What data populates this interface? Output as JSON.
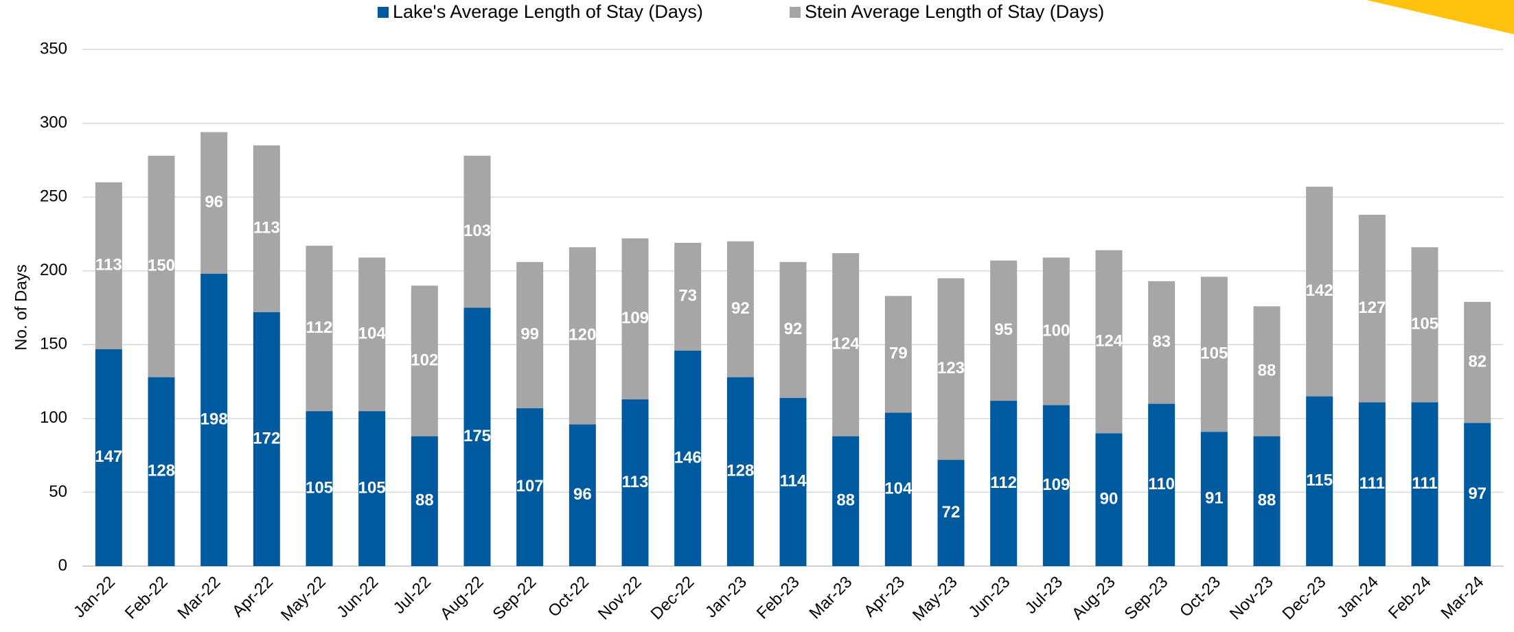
{
  "chart_data": {
    "type": "stacked_bar",
    "y_label": "No. of Days",
    "categories": [
      "Jan-22",
      "Feb-22",
      "Mar-22",
      "Apr-22",
      "May-22",
      "Jun-22",
      "Jul-22",
      "Aug-22",
      "Sep-22",
      "Oct-22",
      "Nov-22",
      "Dec-22",
      "Jan-23",
      "Feb-23",
      "Mar-23",
      "Apr-23",
      "May-23",
      "Jun-23",
      "Jul-23",
      "Aug-23",
      "Sep-23",
      "Oct-23",
      "Nov-23",
      "Dec-23",
      "Jan-24",
      "Feb-24",
      "Mar-24"
    ],
    "series": [
      {
        "name": "Lake's Average Length of Stay (Days)",
        "color": "#005aa0",
        "values": [
          147,
          128,
          198,
          172,
          105,
          105,
          88,
          175,
          107,
          96,
          113,
          146,
          128,
          114,
          88,
          104,
          72,
          112,
          109,
          90,
          110,
          91,
          88,
          115,
          111,
          111,
          97
        ]
      },
      {
        "name": "Stein Average Length of Stay (Days)",
        "color": "#a6a6a6",
        "values": [
          113,
          150,
          96,
          113,
          112,
          104,
          102,
          103,
          99,
          120,
          109,
          73,
          92,
          92,
          124,
          79,
          123,
          95,
          100,
          124,
          83,
          105,
          88,
          142,
          127,
          105,
          82
        ]
      }
    ],
    "ylim": [
      0,
      350
    ],
    "yticks": [
      0,
      50,
      100,
      150,
      200,
      250,
      300,
      350
    ],
    "grid": true
  }
}
